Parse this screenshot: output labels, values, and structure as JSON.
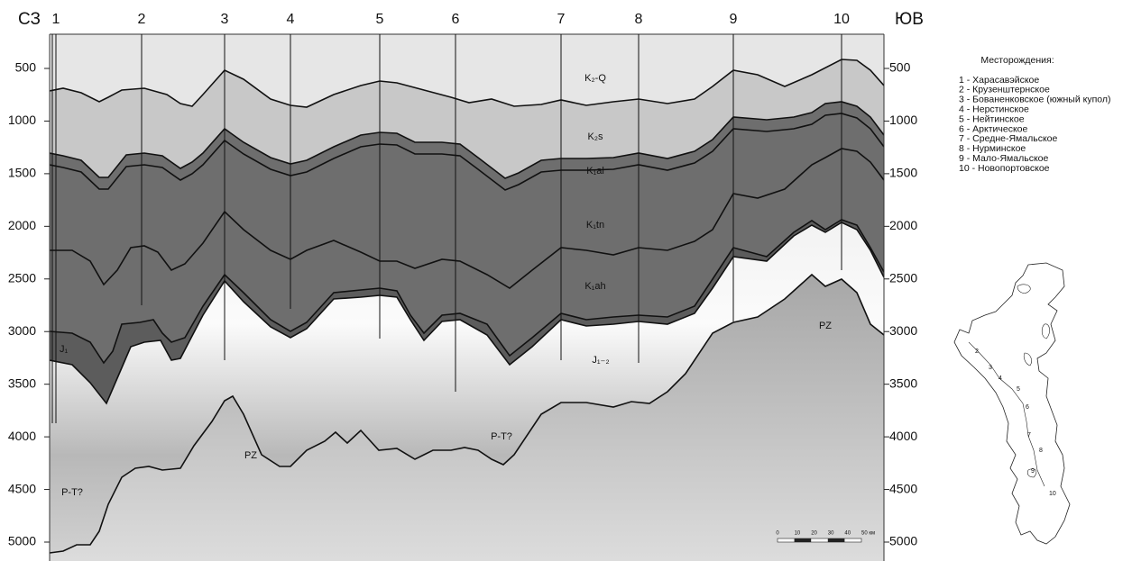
{
  "header": {
    "left": "СЗ",
    "right": "ЮВ"
  },
  "wells": [
    "1",
    "2",
    "3",
    "4",
    "5",
    "6",
    "7",
    "8",
    "9",
    "10"
  ],
  "depth_axis": {
    "ticks": [
      500,
      1000,
      1500,
      2000,
      2500,
      3000,
      3500,
      4000,
      4500,
      5000
    ]
  },
  "layers": [
    "K₂-Q",
    "K₂s",
    "K₁al",
    "K₁tn",
    "K₁ah",
    "J₁₋₂",
    "J₁",
    "PZ",
    "PZ",
    "P-T?",
    "P-T?"
  ],
  "scale_bar": {
    "labels": [
      "0",
      "10",
      "20",
      "30",
      "40",
      "50 км"
    ]
  },
  "legend": {
    "title": "Месторождения:",
    "items": [
      "1 - Харасавэйское",
      "2 - Крузенштернское",
      "3 - Бованенковское (южный купол)",
      "4 - Нерстинское",
      "5 - Нейтинское",
      "6 - Арктическое",
      "7 - Средне-Ямальское",
      "8 - Нурминское",
      "9 - Мало-Ямальское",
      "10 - Новопортовское"
    ]
  },
  "map": {
    "labels": [
      "2",
      "3",
      "4",
      "5",
      "6",
      "7",
      "8",
      "9",
      "10"
    ]
  }
}
